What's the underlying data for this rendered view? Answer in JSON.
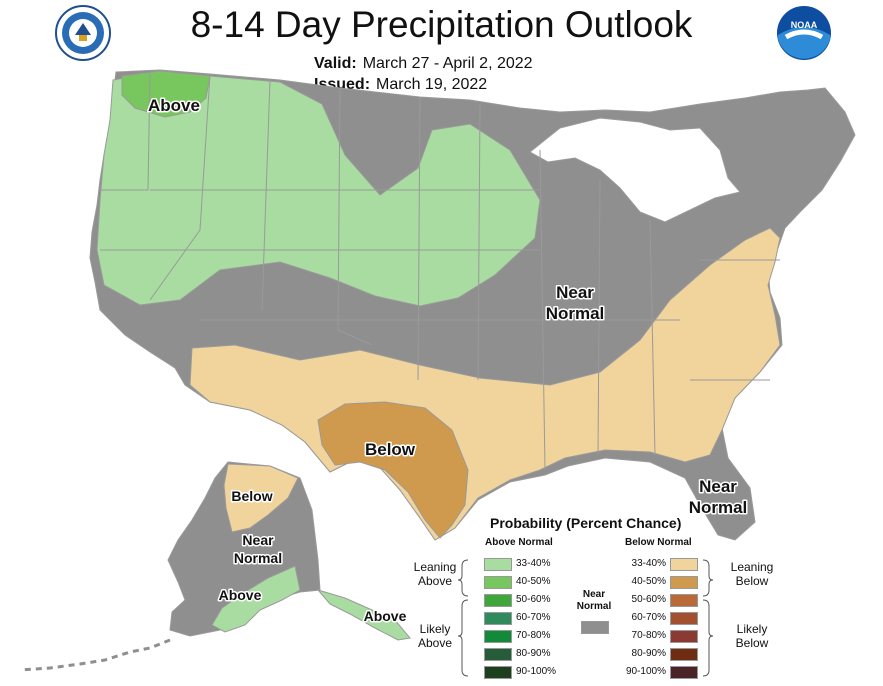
{
  "title": "8-14 Day Precipitation Outlook",
  "valid": {
    "label": "Valid:",
    "value": "March 27 - April 2, 2022"
  },
  "issued": {
    "label": "Issued:",
    "value": "March 19, 2022"
  },
  "logos": {
    "left": "doc-seal",
    "right": "noaa"
  },
  "map_labels": {
    "above_nw": "Above",
    "near_normal_c": [
      "Near",
      "Normal"
    ],
    "below_tx": "Below",
    "near_normal_fl": [
      "Near",
      "Normal"
    ],
    "below_ak": "Below",
    "near_normal_ak": [
      "Near",
      "Normal"
    ],
    "above_ak": "Above",
    "above_ak_se": "Above"
  },
  "colors": {
    "near": "#8f8f8f",
    "above_lean": "#a8dca0",
    "above_4050": "#78c65e",
    "below_lean": "#f1d39c",
    "below_4050": "#cf9a4d",
    "border": "#9a9a9a",
    "water": "#ffffff"
  },
  "legend": {
    "title": "Probability (Percent Chance)",
    "above_header": "Above Normal",
    "below_header": "Below Normal",
    "near_label": [
      "Near",
      "Normal"
    ],
    "leaning_above": [
      "Leaning",
      "Above"
    ],
    "likely_above": [
      "Likely",
      "Above"
    ],
    "leaning_below": [
      "Leaning",
      "Below"
    ],
    "likely_below": [
      "Likely",
      "Below"
    ],
    "above": [
      {
        "label": "33-40%",
        "color": "#a8dca0"
      },
      {
        "label": "40-50%",
        "color": "#78c65e"
      },
      {
        "label": "50-60%",
        "color": "#3fa63a"
      },
      {
        "label": "60-70%",
        "color": "#2f8a5c"
      },
      {
        "label": "70-80%",
        "color": "#138a3a"
      },
      {
        "label": "80-90%",
        "color": "#275c3a"
      },
      {
        "label": "90-100%",
        "color": "#1e3f1e"
      }
    ],
    "below": [
      {
        "label": "33-40%",
        "color": "#f1d39c"
      },
      {
        "label": "40-50%",
        "color": "#cf9a4d"
      },
      {
        "label": "50-60%",
        "color": "#b96a38"
      },
      {
        "label": "60-70%",
        "color": "#a2502f"
      },
      {
        "label": "70-80%",
        "color": "#8a3a33"
      },
      {
        "label": "80-90%",
        "color": "#6e2c12"
      },
      {
        "label": "90-100%",
        "color": "#4a2426"
      }
    ]
  }
}
